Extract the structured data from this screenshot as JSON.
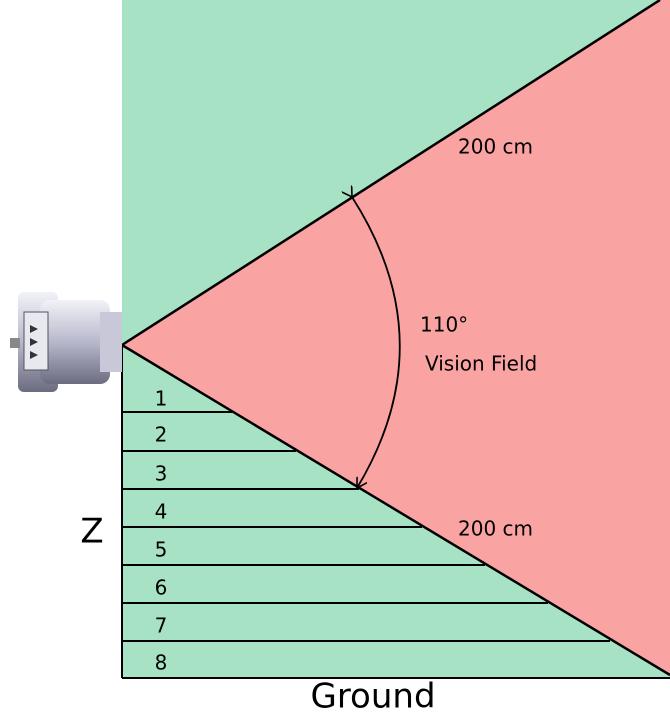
{
  "labels": {
    "range_top": "200 cm",
    "angle": "110°",
    "field": "Vision Field",
    "range_bottom": "200 cm",
    "axis": "Z",
    "ground": "Ground"
  },
  "zones": [
    "1",
    "2",
    "3",
    "4",
    "5",
    "6",
    "7",
    "8"
  ]
}
